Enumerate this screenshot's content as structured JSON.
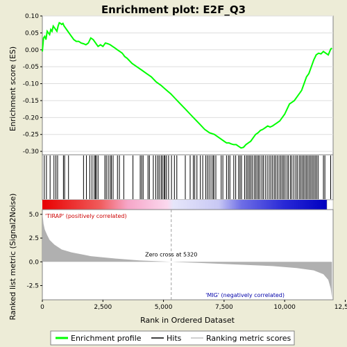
{
  "chart_data": {
    "type": "line",
    "title": "Enrichment plot: E2F_Q3",
    "top_panel": {
      "ylabel": "Enrichment score (ES)",
      "ylim": [
        -0.31,
        0.1
      ],
      "yticks": [
        "0.10",
        "0.05",
        "0.00",
        "-0.05",
        "-0.10",
        "-0.15",
        "-0.20",
        "-0.25",
        "-0.30"
      ],
      "ytick_values": [
        0.1,
        0.05,
        0.0,
        -0.05,
        -0.1,
        -0.15,
        -0.2,
        -0.25,
        -0.3
      ],
      "grid": true,
      "series": [
        {
          "name": "Enrichment profile",
          "color": "#00ff00",
          "x": [
            0,
            50,
            100,
            150,
            200,
            250,
            300,
            350,
            400,
            450,
            500,
            550,
            600,
            650,
            700,
            750,
            800,
            850,
            900,
            950,
            1000,
            1050,
            1100,
            1200,
            1300,
            1400,
            1500,
            1600,
            1700,
            1800,
            1900,
            2000,
            2100,
            2200,
            2300,
            2400,
            2500,
            2600,
            2700,
            2800,
            2900,
            3000,
            3100,
            3200,
            3300,
            3400,
            3500,
            3700,
            3900,
            4100,
            4300,
            4500,
            4700,
            4900,
            5100,
            5300,
            5500,
            5700,
            5900,
            6100,
            6300,
            6500,
            6700,
            6900,
            7100,
            7300,
            7500,
            7600,
            7700,
            7800,
            7900,
            8000,
            8100,
            8200,
            8300,
            8400,
            8500,
            8600,
            8700,
            8800,
            8900,
            9000,
            9100,
            9200,
            9300,
            9400,
            9500,
            9600,
            9700,
            9800,
            9900,
            10000,
            10100,
            10200,
            10300,
            10400,
            10500,
            10600,
            10700,
            10800,
            10900,
            11000,
            11100,
            11200,
            11300,
            11400,
            11500,
            11600,
            11700,
            11800,
            11900,
            11950
          ],
          "values": [
            -0.005,
            0.035,
            0.04,
            0.03,
            0.055,
            0.05,
            0.045,
            0.06,
            0.055,
            0.07,
            0.065,
            0.06,
            0.055,
            0.07,
            0.08,
            0.078,
            0.075,
            0.078,
            0.07,
            0.065,
            0.06,
            0.055,
            0.05,
            0.04,
            0.03,
            0.025,
            0.025,
            0.02,
            0.018,
            0.015,
            0.02,
            0.035,
            0.03,
            0.02,
            0.01,
            0.015,
            0.01,
            0.02,
            0.018,
            0.015,
            0.01,
            0.005,
            0.0,
            -0.005,
            -0.01,
            -0.02,
            -0.025,
            -0.04,
            -0.05,
            -0.06,
            -0.07,
            -0.08,
            -0.095,
            -0.105,
            -0.118,
            -0.13,
            -0.145,
            -0.16,
            -0.175,
            -0.19,
            -0.205,
            -0.22,
            -0.235,
            -0.245,
            -0.25,
            -0.26,
            -0.27,
            -0.275,
            -0.275,
            -0.278,
            -0.28,
            -0.28,
            -0.285,
            -0.29,
            -0.288,
            -0.28,
            -0.275,
            -0.27,
            -0.26,
            -0.25,
            -0.245,
            -0.238,
            -0.235,
            -0.23,
            -0.225,
            -0.228,
            -0.225,
            -0.22,
            -0.215,
            -0.21,
            -0.2,
            -0.19,
            -0.175,
            -0.16,
            -0.155,
            -0.15,
            -0.14,
            -0.13,
            -0.12,
            -0.1,
            -0.08,
            -0.07,
            -0.05,
            -0.03,
            -0.015,
            -0.01,
            -0.012,
            -0.005,
            -0.01,
            -0.015,
            0.002,
            0.005
          ]
        }
      ]
    },
    "hits_panel": {
      "hit_positions": [
        80,
        170,
        320,
        480,
        560,
        630,
        870,
        920,
        1080,
        1700,
        1820,
        1960,
        2050,
        2140,
        2190,
        2230,
        2300,
        2580,
        2640,
        2720,
        2800,
        2850,
        2920,
        3100,
        3180,
        3360,
        3740,
        4040,
        4100,
        4160,
        4360,
        4420,
        4580,
        4680,
        4760,
        4820,
        4900,
        4950,
        5020,
        5060,
        5120,
        5210,
        5330,
        5450,
        5550,
        5900,
        6100,
        6230,
        6290,
        6380,
        6520,
        6620,
        6740,
        6810,
        6880,
        6960,
        7040,
        7080,
        7160,
        7380,
        7450,
        7600,
        7680,
        7740,
        7900,
        7980,
        8100,
        8160,
        8220,
        8350,
        8420,
        8480,
        8540,
        8600,
        8660,
        8740,
        8800,
        8860,
        8920,
        8980,
        9060,
        9120,
        9200,
        9280,
        9360,
        9430,
        9500,
        9570,
        9630,
        9700,
        9770,
        9840,
        9900,
        9960,
        10020,
        10100,
        10160,
        10240,
        10300,
        10380,
        10460,
        10520,
        10600,
        10660,
        10720,
        10780,
        10840,
        10900,
        10960,
        11020,
        11080,
        11140,
        11200,
        11260,
        11320,
        11380,
        11600,
        11660,
        11900
      ]
    },
    "bottom_panel": {
      "ylabel": "Ranked list metric (Signal2Noise)",
      "xlabel": "Rank in Ordered Dataset",
      "xlim": [
        0,
        12000
      ],
      "xticks": [
        "0",
        "2,500",
        "5,000",
        "7,500",
        "10,000",
        "12,500"
      ],
      "xtick_values": [
        0,
        2500,
        5000,
        7500,
        10000,
        12500
      ],
      "ylim": [
        -4.0,
        5.5
      ],
      "yticks": [
        "5.0",
        "2.5",
        "0.0",
        "-2.5"
      ],
      "ytick_values": [
        5.0,
        2.5,
        0.0,
        -2.5
      ],
      "zero_cross": 5320,
      "zero_cross_label": "Zero cross at 5320",
      "pos_label": "'TIRAP' (positively correlated)",
      "neg_label": "'MIG' (negatively correlated)",
      "metric_x": [
        0,
        50,
        100,
        200,
        300,
        500,
        800,
        1200,
        2000,
        3000,
        4000,
        5320,
        6500,
        8000,
        9500,
        10500,
        11200,
        11600,
        11800,
        11900,
        11950
      ],
      "metric_y": [
        5.2,
        4.0,
        3.4,
        2.8,
        2.3,
        1.8,
        1.3,
        1.0,
        0.6,
        0.35,
        0.15,
        0.0,
        -0.12,
        -0.28,
        -0.45,
        -0.65,
        -0.9,
        -1.3,
        -1.9,
        -2.8,
        -3.8
      ]
    },
    "legend": {
      "items": [
        "Enrichment profile",
        "Hits",
        "Ranking metric scores"
      ],
      "placement": "bottom"
    },
    "colors": {
      "profile": "#00ff00",
      "positive": "#ff0000",
      "negative": "#0000ff",
      "metric_fill": "#b0b0b0",
      "pos_label": "#cc0000",
      "neg_label": "#0000aa",
      "background": "#edecd7"
    }
  }
}
